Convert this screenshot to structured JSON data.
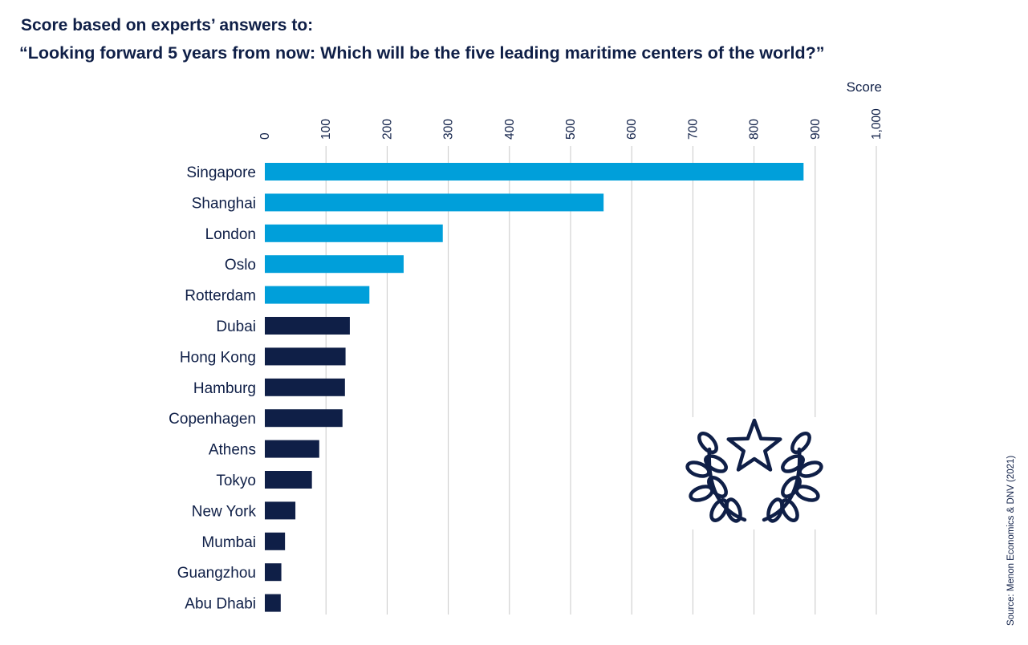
{
  "chart_data": {
    "type": "bar",
    "orientation": "horizontal",
    "subtitle": "Score based on experts’ answers to:",
    "title": "“Looking forward 5 years from now: Which will be the five leading maritime centers of the world?”",
    "xlabel": "Score",
    "xlim": [
      0,
      1000
    ],
    "x_ticks": [
      "0",
      "100",
      "200",
      "300",
      "400",
      "500",
      "600",
      "700",
      "800",
      "900",
      "1,000"
    ],
    "x_tick_values": [
      0,
      100,
      200,
      300,
      400,
      500,
      600,
      700,
      800,
      900,
      1000
    ],
    "grid": true,
    "categories": [
      "Singapore",
      "Shanghai",
      "London",
      "Oslo",
      "Rotterdam",
      "Dubai",
      "Hong Kong",
      "Hamburg",
      "Copenhagen",
      "Athens",
      "Tokyo",
      "New York",
      "Mumbai",
      "Guangzhou",
      "Abu Dhabi"
    ],
    "values": [
      881,
      554,
      291,
      227,
      171,
      139,
      132,
      131,
      127,
      89,
      77,
      50,
      33,
      27,
      26
    ],
    "highlight_top_n": 5,
    "colors": {
      "highlight": "#009fda",
      "default": "#0f1f47",
      "grid": "#c8c8c8"
    },
    "source": "Source: Menon Economics & DNV (2021)",
    "decoration_icon": "laurel-star-icon"
  }
}
